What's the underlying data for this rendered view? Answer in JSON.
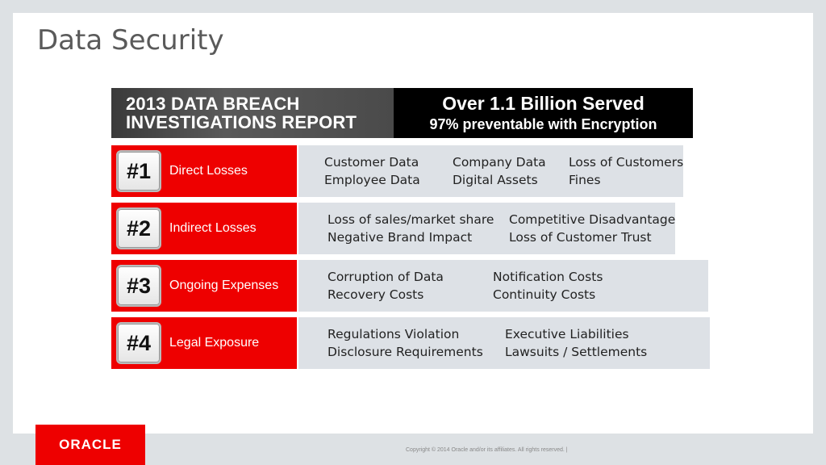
{
  "slide": {
    "title": "Data Security"
  },
  "banner": {
    "left_line1": "2013 DATA BREACH",
    "left_line2": "INVESTIGATIONS REPORT",
    "right_headline": "Over 1.1 Billion Served",
    "right_subline": "97% preventable with Encryption"
  },
  "rows": [
    {
      "badge": "#1",
      "label": "Direct Losses",
      "items": [
        "Customer Data",
        "Company Data",
        "Loss of Customers",
        "Employee Data",
        "Digital Assets",
        "Fines"
      ]
    },
    {
      "badge": "#2",
      "label": "Indirect Losses",
      "items": [
        "Loss of sales/market share",
        "Competitive Disadvantage",
        "Negative Brand Impact",
        "Loss of Customer Trust"
      ]
    },
    {
      "badge": "#3",
      "label": "Ongoing Expenses",
      "items": [
        "Corruption of Data",
        "Notification Costs",
        "Recovery Costs",
        "Continuity Costs"
      ]
    },
    {
      "badge": "#4",
      "label": "Legal Exposure",
      "items": [
        "Regulations Violation",
        "Executive Liabilities",
        "Disclosure Requirements",
        "Lawsuits / Settlements"
      ]
    }
  ],
  "footer": {
    "logo_text": "ORACLE",
    "copyright": "Copyright © 2014 Oracle and/or its affiliates. All rights reserved.  |"
  },
  "colors": {
    "accent_red": "#ee0000",
    "panel_gray": "#dde1e6",
    "background": "#dde1e4"
  }
}
